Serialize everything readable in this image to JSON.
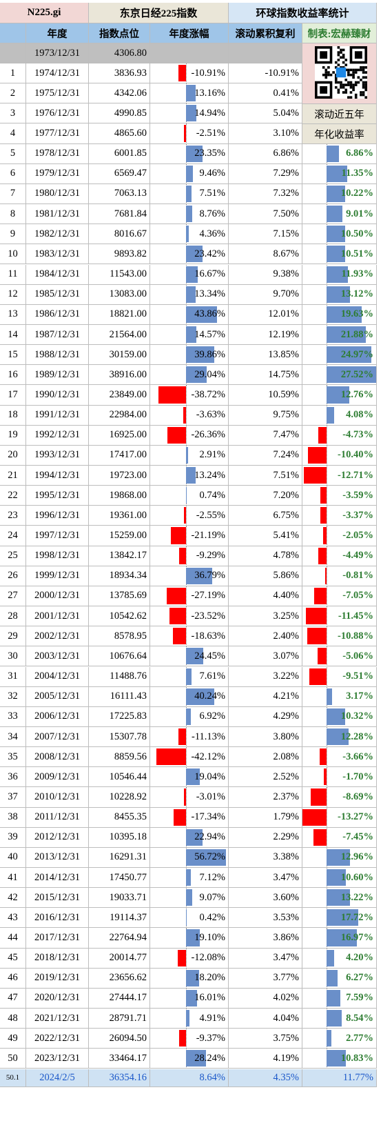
{
  "header": {
    "code": "N225.gi",
    "index_name": "东京日经225指数",
    "stats_title": "环球指数收益率统计",
    "col_year": "年度",
    "col_index": "指数点位",
    "col_change": "年度涨幅",
    "col_cagr": "滚动累积复利",
    "maker": "制表:宏赫臻财",
    "rolling_line1": "滚动近五年",
    "rolling_line2": "年化收益率"
  },
  "base_row": {
    "date": "1973/12/31",
    "index": "4306.80"
  },
  "rows": [
    {
      "n": "1",
      "date": "1974/12/31",
      "index": "3836.93",
      "change": "-10.91%",
      "cagr": "-10.91%",
      "r5": ""
    },
    {
      "n": "2",
      "date": "1975/12/31",
      "index": "4342.06",
      "change": "13.16%",
      "cagr": "0.41%",
      "r5": ""
    },
    {
      "n": "3",
      "date": "1976/12/31",
      "index": "4990.85",
      "change": "14.94%",
      "cagr": "5.04%",
      "r5": ""
    },
    {
      "n": "4",
      "date": "1977/12/31",
      "index": "4865.60",
      "change": "-2.51%",
      "cagr": "3.10%",
      "r5": ""
    },
    {
      "n": "5",
      "date": "1978/12/31",
      "index": "6001.85",
      "change": "23.35%",
      "cagr": "6.86%",
      "r5": "6.86%"
    },
    {
      "n": "6",
      "date": "1979/12/31",
      "index": "6569.47",
      "change": "9.46%",
      "cagr": "7.29%",
      "r5": "11.35%"
    },
    {
      "n": "7",
      "date": "1980/12/31",
      "index": "7063.13",
      "change": "7.51%",
      "cagr": "7.32%",
      "r5": "10.22%"
    },
    {
      "n": "8",
      "date": "1981/12/31",
      "index": "7681.84",
      "change": "8.76%",
      "cagr": "7.50%",
      "r5": "9.01%"
    },
    {
      "n": "9",
      "date": "1982/12/31",
      "index": "8016.67",
      "change": "4.36%",
      "cagr": "7.15%",
      "r5": "10.50%"
    },
    {
      "n": "10",
      "date": "1983/12/31",
      "index": "9893.82",
      "change": "23.42%",
      "cagr": "8.67%",
      "r5": "10.51%"
    },
    {
      "n": "11",
      "date": "1984/12/31",
      "index": "11543.00",
      "change": "16.67%",
      "cagr": "9.38%",
      "r5": "11.93%"
    },
    {
      "n": "12",
      "date": "1985/12/31",
      "index": "13083.00",
      "change": "13.34%",
      "cagr": "9.70%",
      "r5": "13.12%"
    },
    {
      "n": "13",
      "date": "1986/12/31",
      "index": "18821.00",
      "change": "43.86%",
      "cagr": "12.01%",
      "r5": "19.63%"
    },
    {
      "n": "14",
      "date": "1987/12/31",
      "index": "21564.00",
      "change": "14.57%",
      "cagr": "12.19%",
      "r5": "21.88%"
    },
    {
      "n": "15",
      "date": "1988/12/31",
      "index": "30159.00",
      "change": "39.86%",
      "cagr": "13.85%",
      "r5": "24.97%"
    },
    {
      "n": "16",
      "date": "1989/12/31",
      "index": "38916.00",
      "change": "29.04%",
      "cagr": "14.75%",
      "r5": "27.52%"
    },
    {
      "n": "17",
      "date": "1990/12/31",
      "index": "23849.00",
      "change": "-38.72%",
      "cagr": "10.59%",
      "r5": "12.76%"
    },
    {
      "n": "18",
      "date": "1991/12/31",
      "index": "22984.00",
      "change": "-3.63%",
      "cagr": "9.75%",
      "r5": "4.08%"
    },
    {
      "n": "19",
      "date": "1992/12/31",
      "index": "16925.00",
      "change": "-26.36%",
      "cagr": "7.47%",
      "r5": "-4.73%"
    },
    {
      "n": "20",
      "date": "1993/12/31",
      "index": "17417.00",
      "change": "2.91%",
      "cagr": "7.24%",
      "r5": "-10.40%"
    },
    {
      "n": "21",
      "date": "1994/12/31",
      "index": "19723.00",
      "change": "13.24%",
      "cagr": "7.51%",
      "r5": "-12.71%"
    },
    {
      "n": "22",
      "date": "1995/12/31",
      "index": "19868.00",
      "change": "0.74%",
      "cagr": "7.20%",
      "r5": "-3.59%"
    },
    {
      "n": "23",
      "date": "1996/12/31",
      "index": "19361.00",
      "change": "-2.55%",
      "cagr": "6.75%",
      "r5": "-3.37%"
    },
    {
      "n": "24",
      "date": "1997/12/31",
      "index": "15259.00",
      "change": "-21.19%",
      "cagr": "5.41%",
      "r5": "-2.05%"
    },
    {
      "n": "25",
      "date": "1998/12/31",
      "index": "13842.17",
      "change": "-9.29%",
      "cagr": "4.78%",
      "r5": "-4.49%"
    },
    {
      "n": "26",
      "date": "1999/12/31",
      "index": "18934.34",
      "change": "36.79%",
      "cagr": "5.86%",
      "r5": "-0.81%"
    },
    {
      "n": "27",
      "date": "2000/12/31",
      "index": "13785.69",
      "change": "-27.19%",
      "cagr": "4.40%",
      "r5": "-7.05%"
    },
    {
      "n": "28",
      "date": "2001/12/31",
      "index": "10542.62",
      "change": "-23.52%",
      "cagr": "3.25%",
      "r5": "-11.45%"
    },
    {
      "n": "29",
      "date": "2002/12/31",
      "index": "8578.95",
      "change": "-18.63%",
      "cagr": "2.40%",
      "r5": "-10.88%"
    },
    {
      "n": "30",
      "date": "2003/12/31",
      "index": "10676.64",
      "change": "24.45%",
      "cagr": "3.07%",
      "r5": "-5.06%"
    },
    {
      "n": "31",
      "date": "2004/12/31",
      "index": "11488.76",
      "change": "7.61%",
      "cagr": "3.22%",
      "r5": "-9.51%"
    },
    {
      "n": "32",
      "date": "2005/12/31",
      "index": "16111.43",
      "change": "40.24%",
      "cagr": "4.21%",
      "r5": "3.17%"
    },
    {
      "n": "33",
      "date": "2006/12/31",
      "index": "17225.83",
      "change": "6.92%",
      "cagr": "4.29%",
      "r5": "10.32%"
    },
    {
      "n": "34",
      "date": "2007/12/31",
      "index": "15307.78",
      "change": "-11.13%",
      "cagr": "3.80%",
      "r5": "12.28%"
    },
    {
      "n": "35",
      "date": "2008/12/31",
      "index": "8859.56",
      "change": "-42.12%",
      "cagr": "2.08%",
      "r5": "-3.66%"
    },
    {
      "n": "36",
      "date": "2009/12/31",
      "index": "10546.44",
      "change": "19.04%",
      "cagr": "2.52%",
      "r5": "-1.70%"
    },
    {
      "n": "37",
      "date": "2010/12/31",
      "index": "10228.92",
      "change": "-3.01%",
      "cagr": "2.37%",
      "r5": "-8.69%"
    },
    {
      "n": "38",
      "date": "2011/12/31",
      "index": "8455.35",
      "change": "-17.34%",
      "cagr": "1.79%",
      "r5": "-13.27%"
    },
    {
      "n": "39",
      "date": "2012/12/31",
      "index": "10395.18",
      "change": "22.94%",
      "cagr": "2.29%",
      "r5": "-7.45%"
    },
    {
      "n": "40",
      "date": "2013/12/31",
      "index": "16291.31",
      "change": "56.72%",
      "cagr": "3.38%",
      "r5": "12.96%"
    },
    {
      "n": "41",
      "date": "2014/12/31",
      "index": "17450.77",
      "change": "7.12%",
      "cagr": "3.47%",
      "r5": "10.60%"
    },
    {
      "n": "42",
      "date": "2015/12/31",
      "index": "19033.71",
      "change": "9.07%",
      "cagr": "3.60%",
      "r5": "13.22%"
    },
    {
      "n": "43",
      "date": "2016/12/31",
      "index": "19114.37",
      "change": "0.42%",
      "cagr": "3.53%",
      "r5": "17.72%"
    },
    {
      "n": "44",
      "date": "2017/12/31",
      "index": "22764.94",
      "change": "19.10%",
      "cagr": "3.86%",
      "r5": "16.97%"
    },
    {
      "n": "45",
      "date": "2018/12/31",
      "index": "20014.77",
      "change": "-12.08%",
      "cagr": "3.47%",
      "r5": "4.20%"
    },
    {
      "n": "46",
      "date": "2019/12/31",
      "index": "23656.62",
      "change": "18.20%",
      "cagr": "3.77%",
      "r5": "6.27%"
    },
    {
      "n": "47",
      "date": "2020/12/31",
      "index": "27444.17",
      "change": "16.01%",
      "cagr": "4.02%",
      "r5": "7.59%"
    },
    {
      "n": "48",
      "date": "2021/12/31",
      "index": "28791.71",
      "change": "4.91%",
      "cagr": "4.04%",
      "r5": "8.54%"
    },
    {
      "n": "49",
      "date": "2022/12/31",
      "index": "26094.50",
      "change": "-9.37%",
      "cagr": "3.75%",
      "r5": "2.77%"
    },
    {
      "n": "50",
      "date": "2023/12/31",
      "index": "33464.17",
      "change": "28.24%",
      "cagr": "4.19%",
      "r5": "10.83%"
    }
  ],
  "last_row": {
    "n": "50.1",
    "date": "2024/2/5",
    "index": "36354.16",
    "change": "8.64%",
    "cagr": "4.35%",
    "r5": "11.77%"
  },
  "colors": {
    "positive_bar": "#6a8fc9",
    "negative_bar": "#ff0000",
    "rolling_text": "#2e7d32"
  }
}
